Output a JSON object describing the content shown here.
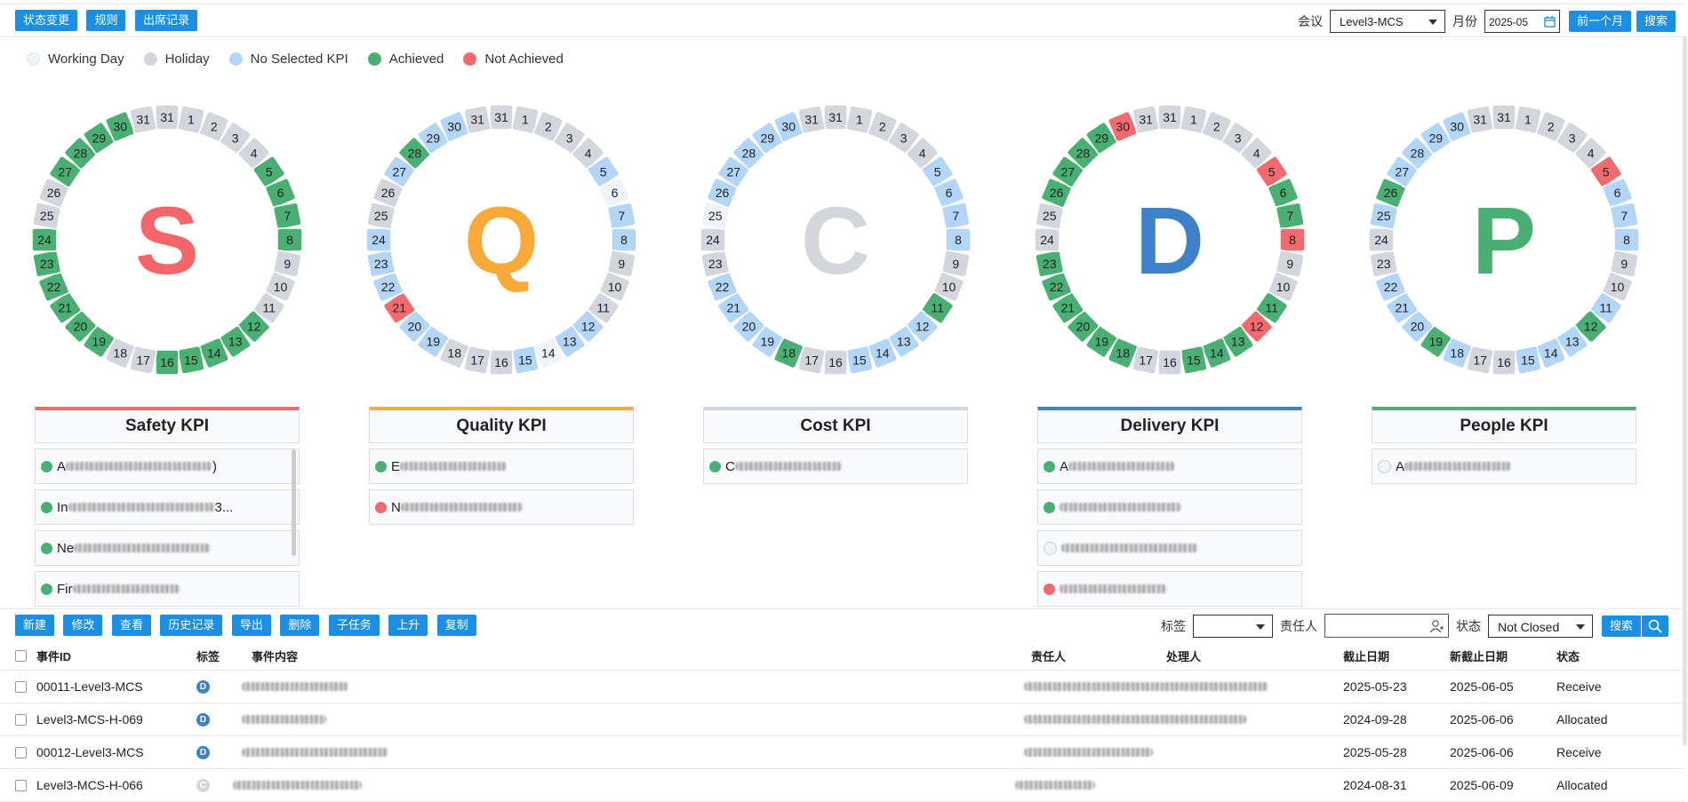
{
  "toolbar": {
    "buttons": [
      "状态变更",
      "规则",
      "出席记录"
    ],
    "meeting_label": "会议",
    "meeting_value": "Level3-MCS",
    "month_label": "月份",
    "month_value": "2025-05",
    "prev_month": "前一个月",
    "search": "搜索"
  },
  "legend": [
    {
      "label": "Working Day",
      "color": "#eef4fa"
    },
    {
      "label": "Holiday",
      "color": "#d3d6dc"
    },
    {
      "label": "No Selected KPI",
      "color": "#b3d5f7"
    },
    {
      "label": "Achieved",
      "color": "#4aaf73"
    },
    {
      "label": "Not Achieved",
      "color": "#f16b6e"
    }
  ],
  "colors": {
    "W": "#eef4fa",
    "H": "#d3d6dc",
    "B": "#b3d5f7",
    "G": "#4aaf73",
    "R": "#f16b6e"
  },
  "kpis": [
    {
      "letter": "S",
      "title": "Safety KPI",
      "color": "#f5666a",
      "status": "HHHHHGGGGHHHGGGGGHHGGGGGGHHGGGGH",
      "items": [
        {
          "prefix": "A",
          "dot": "G",
          "suffix": ")"
        },
        {
          "prefix": "In",
          "dot": "G",
          "suffix": "3..."
        },
        {
          "prefix": "Ne",
          "dot": "G",
          "suffix": ""
        },
        {
          "prefix": "Fir",
          "dot": "G",
          "suffix": ""
        }
      ]
    },
    {
      "letter": "Q",
      "title": "Quality KPI",
      "color": "#f9a937",
      "status": "HHHHHBWBBHHHBBWBHHHBBRBBBHHBGBBH",
      "items": [
        {
          "prefix": "E",
          "dot": "G",
          "suffix": ""
        },
        {
          "prefix": "N",
          "dot": "R",
          "suffix": ""
        }
      ]
    },
    {
      "letter": "C",
      "title": "Cost KPI",
      "color": "#d3d6dc",
      "status": "HHHHHBBBBHHGBBBBHHGBBBBHHWBBBBBH",
      "items": [
        {
          "prefix": "C",
          "dot": "G",
          "suffix": ""
        }
      ]
    },
    {
      "letter": "D",
      "title": "Delivery KPI",
      "color": "#3d82c9",
      "status": "HHHHHRGGRHHGRGGGHHGGGGGGHHGGGGRH",
      "items": [
        {
          "prefix": "A",
          "dot": "G",
          "suffix": ""
        },
        {
          "prefix": "",
          "dot": "G",
          "suffix": ""
        },
        {
          "prefix": "",
          "dot": "W",
          "suffix": ""
        },
        {
          "prefix": "",
          "dot": "R",
          "suffix": ""
        }
      ]
    },
    {
      "letter": "P",
      "title": "People KPI",
      "color": "#4aaf73",
      "status": "HHHHHRBBBHHBGBBBHHBGBBBHHBGBBBBH",
      "items": [
        {
          "prefix": "A",
          "dot": "W",
          "suffix": ""
        }
      ]
    }
  ],
  "events": {
    "buttons": [
      "新建",
      "修改",
      "查看",
      "历史记录",
      "导出",
      "删除",
      "子任务",
      "上升",
      "复制"
    ],
    "tag_label": "标签",
    "owner_label": "责任人",
    "status_label": "状态",
    "status_value": "Not Closed",
    "search": "搜索",
    "columns": {
      "id": "事件ID",
      "tag": "标签",
      "content": "事件内容",
      "owner": "责任人",
      "handler": "处理人",
      "due": "截止日期",
      "new_due": "新截止日期",
      "status": "状态"
    },
    "rows": [
      {
        "id": "00011-Level3-MCS",
        "tag": "D",
        "tag_color": "#3d82c9",
        "due": "2025-05-23",
        "new_due": "2025-06-05",
        "status": "Receive"
      },
      {
        "id": "Level3-MCS-H-069",
        "tag": "D",
        "tag_color": "#3d82c9",
        "due": "2024-09-28",
        "new_due": "2025-06-06",
        "status": "Allocated"
      },
      {
        "id": "00012-Level3-MCS",
        "tag": "D",
        "tag_color": "#3d82c9",
        "due": "2025-05-28",
        "new_due": "2025-06-06",
        "status": "Receive"
      },
      {
        "id": "Level3-MCS-H-066",
        "tag": "C",
        "tag_color": "#d3d6dc",
        "due": "2024-08-31",
        "new_due": "2025-06-09",
        "status": "Allocated"
      }
    ]
  }
}
